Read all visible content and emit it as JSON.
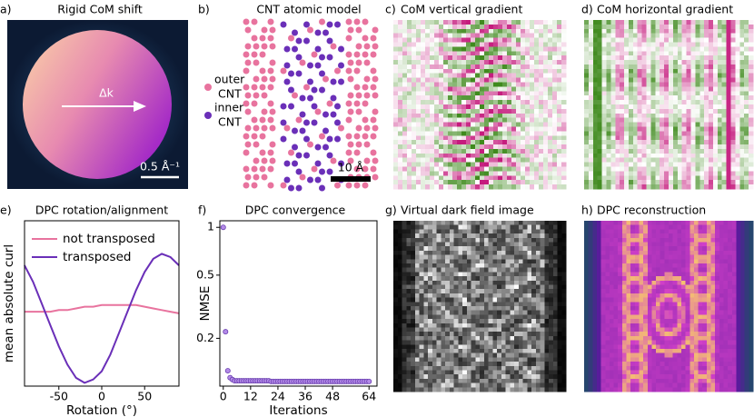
{
  "panels": [
    {
      "label": "a)",
      "title": "Rigid CoM shift",
      "arrow_label": "Δk",
      "scale_bar": "0.5 Å⁻¹"
    },
    {
      "label": "b)",
      "title": "CNT atomic model",
      "legend": [
        {
          "lines": [
            "outer",
            "CNT"
          ],
          "color": "#e8739e"
        },
        {
          "lines": [
            "inner",
            "CNT"
          ],
          "color": "#6a2fb8"
        }
      ],
      "scale_bar": "10 Å"
    },
    {
      "label": "c)",
      "title": "CoM vertical gradient"
    },
    {
      "label": "d)",
      "title": "CoM horizontal gradient"
    },
    {
      "label": "g)",
      "title": "Virtual dark field image"
    },
    {
      "label": "h)",
      "title": "DPC reconstruction"
    }
  ],
  "chart_data": [
    {
      "type": "line",
      "label": "e)",
      "title": "DPC rotation/alignment",
      "xlabel": "Rotation (°)",
      "ylabel": "mean absolute curl",
      "x": [
        -90,
        -80,
        -70,
        -60,
        -50,
        -40,
        -30,
        -20,
        -10,
        0,
        10,
        20,
        30,
        40,
        50,
        60,
        70,
        80,
        90
      ],
      "series": [
        {
          "name": "not transposed",
          "color": "#e8739e",
          "values": [
            0.45,
            0.45,
            0.45,
            0.45,
            0.46,
            0.46,
            0.47,
            0.48,
            0.48,
            0.49,
            0.49,
            0.49,
            0.49,
            0.49,
            0.48,
            0.47,
            0.46,
            0.45,
            0.44
          ]
        },
        {
          "name": "transposed",
          "color": "#6a2fb8",
          "values": [
            0.73,
            0.63,
            0.5,
            0.37,
            0.24,
            0.13,
            0.05,
            0.02,
            0.04,
            0.09,
            0.19,
            0.32,
            0.45,
            0.58,
            0.69,
            0.77,
            0.8,
            0.78,
            0.73
          ]
        }
      ],
      "xlim": [
        -90,
        90
      ],
      "xticks": [
        -50,
        0,
        50
      ],
      "ylim": [
        0,
        1
      ],
      "legend": "upper left"
    },
    {
      "type": "scatter",
      "label": "f)",
      "title": "DPC convergence",
      "xlabel": "Iterations",
      "ylabel": "NMSE",
      "log_y": true,
      "color": "#b48be8",
      "edgecolor": "#6a3fb0",
      "x": [
        0,
        1,
        2,
        3,
        4,
        5,
        6,
        7,
        8,
        9,
        10,
        11,
        12,
        13,
        14,
        15,
        16,
        17,
        18,
        19,
        20,
        21,
        22,
        23,
        24,
        25,
        26,
        27,
        28,
        29,
        30,
        31,
        32,
        33,
        34,
        35,
        36,
        37,
        38,
        39,
        40,
        41,
        42,
        43,
        44,
        45,
        46,
        47,
        48,
        49,
        50,
        51,
        52,
        53,
        54,
        55,
        56,
        57,
        58,
        59,
        60,
        61,
        62,
        63,
        64
      ],
      "values": [
        1.0,
        0.22,
        0.125,
        0.113,
        0.11,
        0.108,
        0.108,
        0.108,
        0.108,
        0.108,
        0.108,
        0.108,
        0.108,
        0.108,
        0.108,
        0.108,
        0.108,
        0.108,
        0.108,
        0.108,
        0.108,
        0.107,
        0.107,
        0.107,
        0.107,
        0.107,
        0.107,
        0.107,
        0.107,
        0.107,
        0.107,
        0.107,
        0.107,
        0.107,
        0.107,
        0.107,
        0.107,
        0.107,
        0.107,
        0.107,
        0.107,
        0.107,
        0.107,
        0.107,
        0.107,
        0.107,
        0.107,
        0.107,
        0.107,
        0.107,
        0.107,
        0.107,
        0.107,
        0.107,
        0.107,
        0.107,
        0.107,
        0.107,
        0.107,
        0.107,
        0.107,
        0.107,
        0.107,
        0.107,
        0.107
      ],
      "xlim": [
        -1.5,
        67.5
      ],
      "xticks": [
        0,
        12,
        24,
        36,
        48,
        64
      ],
      "ylim": [
        0.1,
        1.1
      ],
      "yticks": [
        1,
        0.5,
        0.2
      ]
    }
  ]
}
